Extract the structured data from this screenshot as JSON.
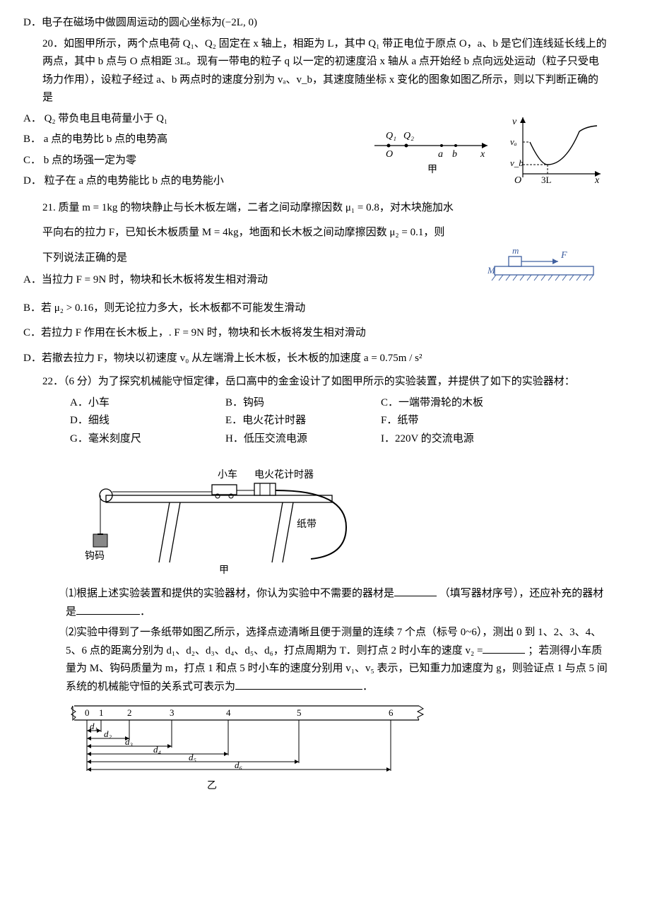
{
  "q19": {
    "optD": "D．电子在磁场中做圆周运动的圆心坐标为(−2L, 0)"
  },
  "q20": {
    "stem": "20．如图甲所示，两个点电荷 Q₁、Q₂ 固定在 x 轴上，相距为 L，其中 Q₁ 带正电位于原点 O，a、b 是它们连线延长线上的两点，其中 b 点与 O 点相距 3L。现有一带电的粒子 q 以一定的初速度沿 x 轴从 a 点开始经 b 点向远处运动（粒子只受电场力作用），设粒子经过 a、b 两点时的速度分别为 vₐ、v_b，其速度随坐标 x 变化的图象如图乙所示，则以下判断正确的是",
    "A": "A．  Q₂ 带负电且电荷量小于 Q₁",
    "B": "B．  a 点的电势比 b 点的电势高",
    "C": "C．  b 点的场强一定为零",
    "D": "D．  粒子在 a 点的电势能比 b 点的电势能小",
    "fig1": {
      "Q1": "Q₁",
      "Q2": "Q₂",
      "O": "O",
      "a": "a",
      "b": "b",
      "x": "x",
      "cap": "甲"
    },
    "fig2": {
      "v": "v",
      "va": "vₐ",
      "vb": "v_b",
      "O": "O",
      "x3L": "3L",
      "x": "x"
    }
  },
  "q21": {
    "stem1": "21. 质量 m = 1kg 的物块静止与长木板左端，二者之间动摩擦因数 μ₁ = 0.8，对木块施加水",
    "stem2": "平向右的拉力 F，已知长木板质量 M = 4kg，地面和长木板之间动摩擦因数 μ₂ = 0.1，则",
    "stem3": "下列说法正确的是",
    "A": "A．当拉力 F = 9N 时，物块和长木板将发生相对滑动",
    "B": "B．若 μ₂ > 0.16，则无论拉力多大，长木板都不可能发生滑动",
    "C": "C．若拉力 F 作用在长木板上，. F = 9N 时，物块和长木板将发生相对滑动",
    "D": "D．若撤去拉力 F，物块以初速度 v₀ 从左端滑上长木板，长木板的加速度 a = 0.75m / s²",
    "fig": {
      "m": "m",
      "F": "F",
      "M": "M"
    }
  },
  "q22": {
    "stem": "22．（6 分）为了探究机械能守恒定律，岳口高中的金金设计了如图甲所示的实验装置，并提供了如下的实验器材：",
    "items": {
      "A": "A．小车",
      "B": "B．钩码",
      "C": "C．一端带滑轮的木板",
      "D": "D．细线",
      "E": "E．电火花计时器",
      "F": "F．纸带",
      "G": "G．毫米刻度尺",
      "H": "H．低压交流电源",
      "I": "I．220V 的交流电源"
    },
    "fig1": {
      "cart": "小车",
      "timer": "电火花计时器",
      "tape": "纸带",
      "weight": "钩码",
      "cap": "甲"
    },
    "p1a": "⑴根据上述实验装置和提供的实验器材，你认为实验中不需要的器材是",
    "p1b": "（填写器材序号），还应补充的器材是",
    "p1c": "．",
    "p2": "⑵实验中得到了一条纸带如图乙所示，选择点迹清晰且便于测量的连续 7 个点（标号 0~6），测出 0 到 1、2、3、4、5、6 点的距离分别为 d₁、d₂、d₃、d₄、d₅、d₆，打点周期为 T．则打点 2 时小车的速度 v₂ =",
    "p2b": "；若测得小车质量为 M、钩码质量为 m，打点 1 和点 5 时小车的速度分别用 v₁、v₅ 表示，已知重力加速度为 g，则验证点 1 与点 5 间系统的机械能守恒的关系式可表示为",
    "p2c": "．",
    "fig2": {
      "labels": [
        "0",
        "1",
        "2",
        "3",
        "4",
        "5",
        "6"
      ],
      "ds": [
        "d₁",
        "d₂",
        "d₃",
        "d₄",
        "d₅",
        "d₆"
      ],
      "cap": "乙"
    }
  },
  "colors": {
    "stroke": "#000000",
    "hatch": "#000000",
    "blue": "#4060a0"
  }
}
